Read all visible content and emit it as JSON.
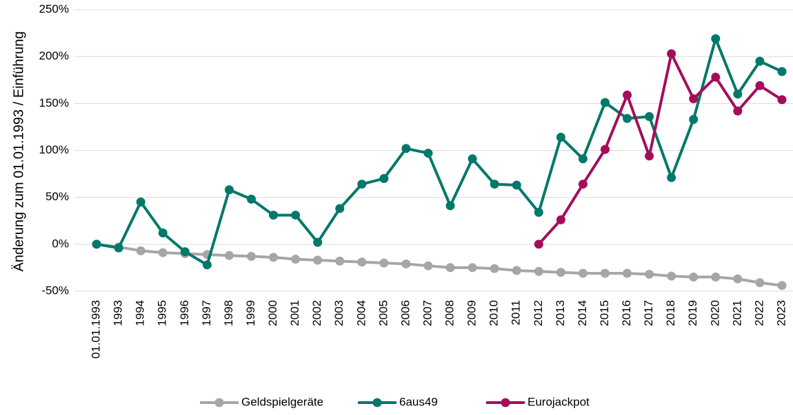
{
  "chart_data": {
    "type": "line",
    "y_label": "Änderung zum 01.01.1993 / Einführung",
    "categories": [
      "01.01.1993",
      "1993",
      "1994",
      "1995",
      "1996",
      "1997",
      "1998",
      "1999",
      "2000",
      "2001",
      "2002",
      "2003",
      "2004",
      "2005",
      "2006",
      "2007",
      "2008",
      "2009",
      "2010",
      "2011",
      "2012",
      "2013",
      "2014",
      "2015",
      "2016",
      "2017",
      "2018",
      "2019",
      "2020",
      "2021",
      "2022",
      "2023"
    ],
    "series": [
      {
        "name": "Geldspielgeräte",
        "color": "#a6a6a6",
        "values": [
          0,
          -3,
          -7,
          -9,
          -10,
          -11,
          -12,
          -13,
          -14,
          -16,
          -17,
          -18,
          -19,
          -20,
          -21,
          -23,
          -25,
          -25,
          -26,
          -28,
          -29,
          -30,
          -31,
          -31,
          -31,
          -32,
          -34,
          -35,
          -35,
          -37,
          -41,
          -44
        ]
      },
      {
        "name": "6aus49",
        "color": "#00786a",
        "values": [
          0,
          -4,
          45,
          12,
          -8,
          -22,
          58,
          48,
          31,
          31,
          2,
          38,
          64,
          70,
          102,
          97,
          41,
          91,
          64,
          63,
          34,
          114,
          91,
          151,
          134,
          136,
          71,
          133,
          219,
          160,
          195,
          184
        ]
      },
      {
        "name": "Eurojackpot",
        "color": "#a50d5b",
        "values": [
          null,
          null,
          null,
          null,
          null,
          null,
          null,
          null,
          null,
          null,
          null,
          null,
          null,
          null,
          null,
          null,
          null,
          null,
          null,
          null,
          0,
          26,
          64,
          101,
          159,
          94,
          203,
          155,
          178,
          142,
          169,
          154
        ]
      }
    ],
    "ylim": [
      -50,
      250
    ],
    "yticks": [
      {
        "value": -50,
        "label": "-50%"
      },
      {
        "value": 0,
        "label": "0%"
      },
      {
        "value": 50,
        "label": "50%"
      },
      {
        "value": 100,
        "label": "100%"
      },
      {
        "value": 150,
        "label": "150%"
      },
      {
        "value": 200,
        "label": "200%"
      },
      {
        "value": 250,
        "label": "250%"
      }
    ],
    "grid": true,
    "legend": "bottom"
  }
}
